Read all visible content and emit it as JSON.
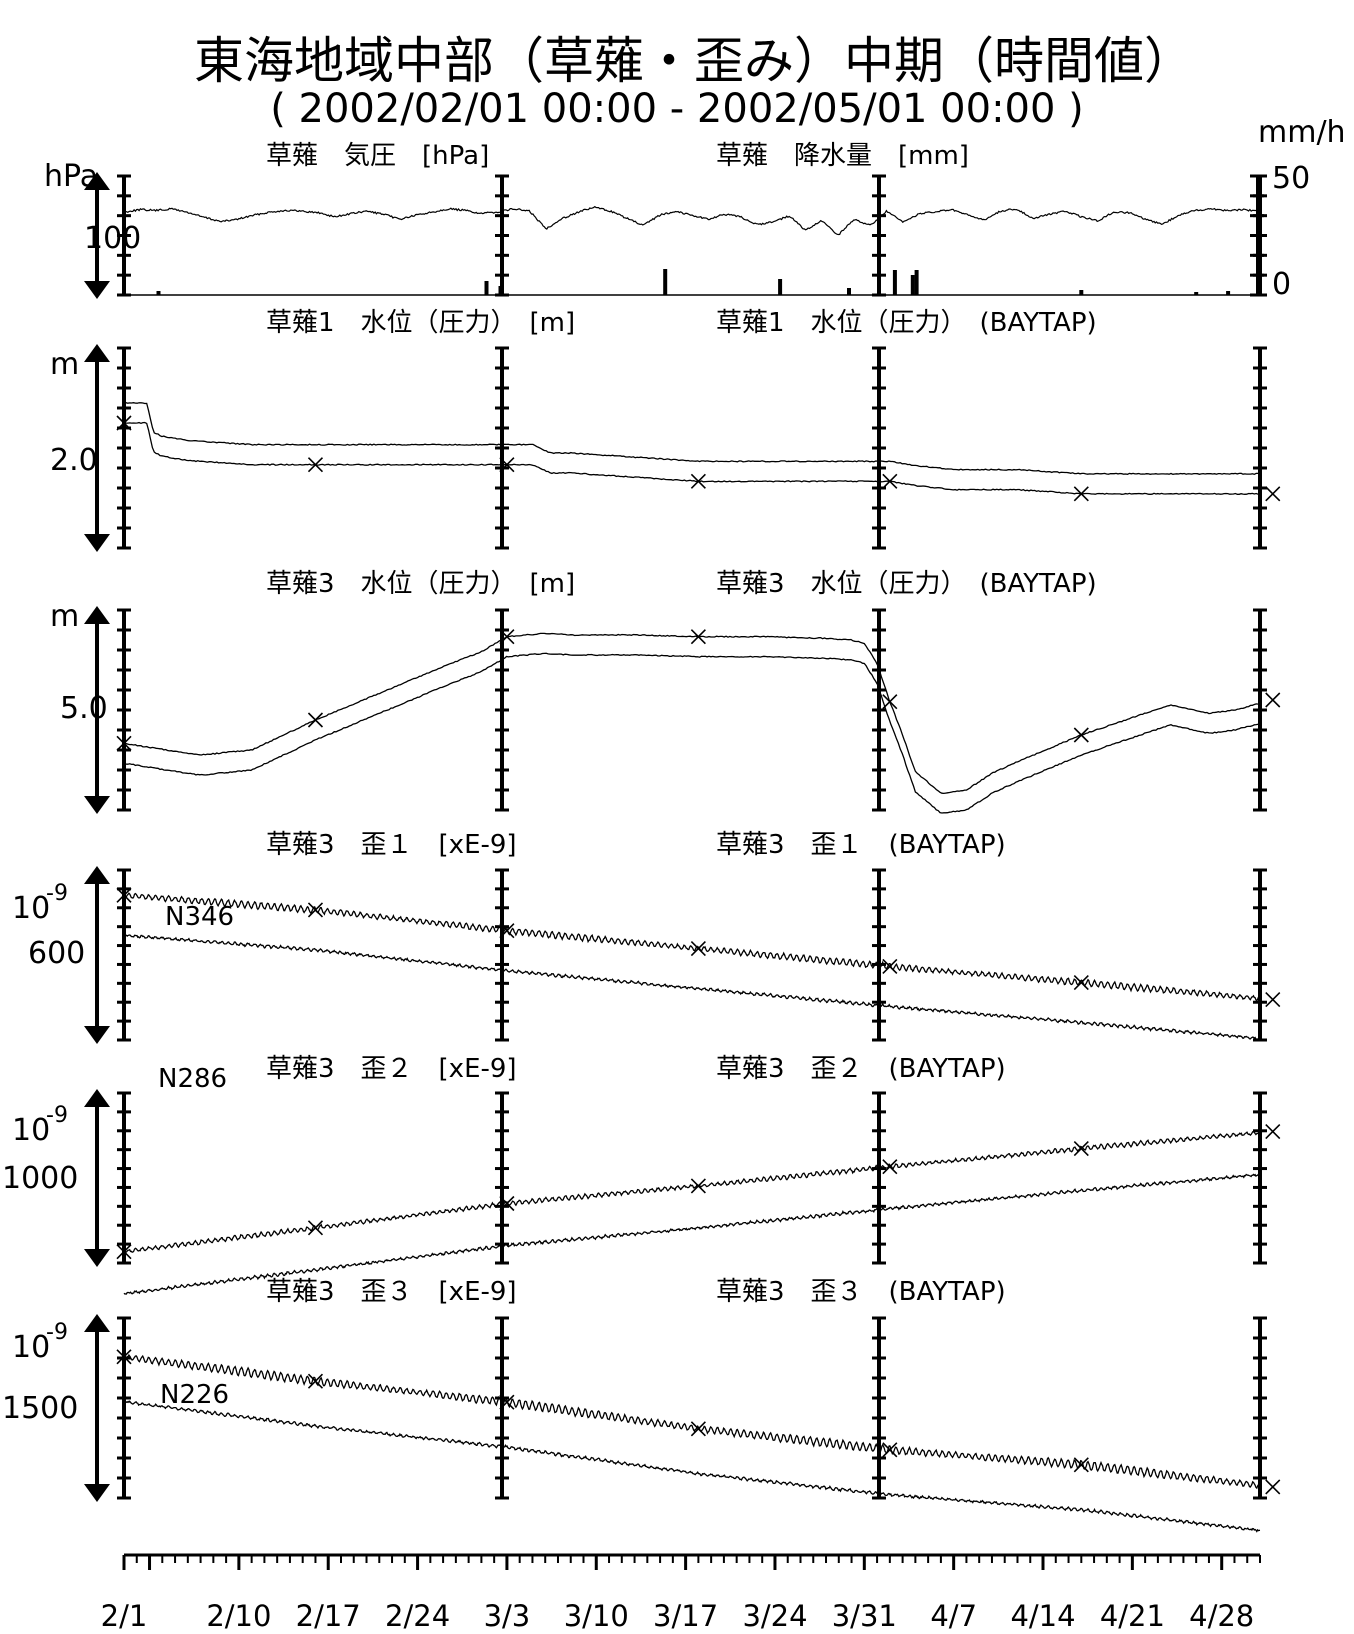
{
  "title": "東海地域中部（草薙・歪み）中期（時間値）",
  "subtitle": "( 2002/02/01 00:00 - 2002/05/01 00:00 )",
  "chart_data": [
    {
      "type": "line",
      "left_title": "草薙　気圧　[hPa]",
      "right_title": "草薙　降水量　[mm]",
      "ylabel": "hPa",
      "ylabel_right": "mm/h",
      "tick_label": "100",
      "right_ticks": [
        "50",
        "0"
      ],
      "series": [
        {
          "values": [
            10,
            7,
            8,
            6,
            11,
            17,
            22,
            19,
            14,
            10,
            8,
            9,
            11,
            16,
            12,
            9,
            13,
            19,
            14,
            10,
            6,
            8,
            12,
            10,
            6,
            9,
            31,
            18,
            10,
            4,
            9,
            18,
            27,
            14,
            9,
            14,
            19,
            13,
            16,
            26,
            22,
            15,
            33,
            21,
            39,
            19,
            27,
            9,
            23,
            12,
            10,
            7,
            14,
            20,
            9,
            6,
            18,
            13,
            9,
            16,
            21,
            10,
            11,
            20,
            25,
            14,
            8,
            6,
            8,
            7,
            9
          ]
        },
        {
          "spikes": [
            [
              2.7,
              4
            ],
            [
              28.4,
              14
            ],
            [
              29.5,
              9
            ],
            [
              42.4,
              26
            ],
            [
              51.4,
              16
            ],
            [
              56.8,
              7
            ],
            [
              60.4,
              25
            ],
            [
              61.8,
              20
            ],
            [
              62.1,
              25
            ],
            [
              75.0,
              5
            ],
            [
              84.0,
              3
            ],
            [
              86.5,
              4
            ]
          ]
        }
      ]
    },
    {
      "type": "line",
      "left_title": "草薙1　水位（圧力）　[m]",
      "right_title": "草薙1　水位（圧力）　(BAYTAP)",
      "ylabel": "m",
      "tick_label": "2.0",
      "series": [
        {
          "x": [
            0,
            1.8,
            2.3,
            3.0,
            5,
            10,
            20,
            29,
            32,
            33.4,
            35,
            40,
            45,
            50,
            57,
            60,
            62,
            65,
            70,
            75,
            80,
            85,
            90
          ],
          "values": [
            1.78,
            1.78,
            1.85,
            1.86,
            1.87,
            1.88,
            1.88,
            1.88,
            1.88,
            1.9,
            1.9,
            1.91,
            1.92,
            1.92,
            1.92,
            1.92,
            1.93,
            1.94,
            1.94,
            1.95,
            1.95,
            1.95,
            1.95
          ]
        },
        {
          "x": [
            0,
            1.8,
            2.3,
            3.0,
            5,
            10,
            20,
            29,
            32,
            33.4,
            35,
            40,
            45,
            50,
            57,
            60,
            62,
            65,
            70,
            75,
            80,
            85,
            90
          ],
          "values": [
            1.78,
            1.78,
            1.85,
            1.86,
            1.87,
            1.88,
            1.88,
            1.88,
            1.88,
            1.9,
            1.9,
            1.91,
            1.92,
            1.92,
            1.92,
            1.92,
            1.93,
            1.94,
            1.94,
            1.95,
            1.95,
            1.95,
            1.95
          ]
        }
      ]
    },
    {
      "type": "line",
      "left_title": "草薙3　水位（圧力）　[m]",
      "right_title": "草薙3　水位（圧力）　(BAYTAP)",
      "ylabel": "m",
      "tick_label": "5.0",
      "series": [
        {
          "x": [
            0,
            5,
            6,
            10,
            15,
            20,
            25,
            28,
            30,
            33,
            35,
            40,
            45,
            50,
            55,
            57,
            58,
            59,
            60,
            61,
            62,
            64,
            66,
            68,
            70,
            75,
            80,
            82,
            85,
            87,
            90
          ],
          "values": [
            5.0,
            5.06,
            5.07,
            5.04,
            4.86,
            4.7,
            4.54,
            4.45,
            4.36,
            4.34,
            4.35,
            4.35,
            4.36,
            4.36,
            4.37,
            4.38,
            4.4,
            4.52,
            4.75,
            4.95,
            5.17,
            5.3,
            5.28,
            5.18,
            5.11,
            4.95,
            4.82,
            4.77,
            4.82,
            4.8,
            4.74
          ]
        },
        {
          "x": [
            0,
            5,
            6,
            10,
            15,
            20,
            25,
            28,
            30,
            33,
            35,
            40,
            45,
            50,
            55,
            57,
            58,
            59,
            60,
            61,
            62,
            64,
            66,
            68,
            70,
            75,
            80,
            82,
            85,
            87,
            90
          ],
          "values": [
            5.0,
            5.06,
            5.07,
            5.04,
            4.86,
            4.7,
            4.54,
            4.45,
            4.36,
            4.34,
            4.35,
            4.35,
            4.36,
            4.36,
            4.37,
            4.38,
            4.4,
            4.52,
            4.75,
            4.95,
            5.17,
            5.3,
            5.28,
            5.18,
            5.11,
            4.95,
            4.82,
            4.77,
            4.82,
            4.8,
            4.74
          ]
        }
      ]
    },
    {
      "type": "line",
      "left_title": "草薙3　歪１　[xE-9]",
      "right_title": "草薙3　歪１　(BAYTAP)",
      "ylabel": "10",
      "ylabel_exp": "-9",
      "tick_label": "600",
      "series_label": "N346",
      "series": [
        {
          "x": [
            0,
            15,
            30,
            45,
            60,
            75,
            90
          ],
          "values": [
            585,
            617,
            662,
            701,
            740,
            775,
            812
          ]
        },
        {
          "x": [
            0,
            15,
            30,
            45,
            60,
            75,
            90
          ],
          "values": [
            585,
            617,
            662,
            701,
            740,
            775,
            812
          ]
        }
      ]
    },
    {
      "type": "line",
      "left_title": "草薙3　歪２　[xE-9]",
      "right_title": "草薙3　歪２　(BAYTAP)",
      "ylabel": "10",
      "ylabel_exp": "-9",
      "tick_label": "1000",
      "series_label": "N286",
      "series": [
        {
          "x": [
            0,
            15,
            30,
            45,
            60,
            75,
            90
          ],
          "values": [
            1110,
            1068,
            1025,
            994,
            960,
            928,
            898
          ]
        },
        {
          "x": [
            0,
            15,
            30,
            45,
            60,
            75,
            90
          ],
          "values": [
            1110,
            1068,
            1025,
            994,
            960,
            928,
            898
          ]
        }
      ]
    },
    {
      "type": "line",
      "left_title": "草薙3　歪３　[xE-9]",
      "right_title": "草薙3　歪３　(BAYTAP)",
      "ylabel": "10",
      "ylabel_exp": "-9",
      "tick_label": "1500",
      "series_label": "N226",
      "series": [
        {
          "x": [
            0,
            15,
            30,
            45,
            60,
            75,
            90
          ],
          "values": [
            1480,
            1524,
            1562,
            1610,
            1648,
            1675,
            1715
          ]
        },
        {
          "x": [
            0,
            15,
            30,
            45,
            60,
            75,
            90
          ],
          "values": [
            1480,
            1524,
            1562,
            1610,
            1648,
            1675,
            1715
          ]
        }
      ]
    }
  ],
  "x_axis": {
    "labels": [
      "2/1",
      "2/10",
      "2/17",
      "2/24",
      "3/3",
      "3/10",
      "3/17",
      "3/24",
      "3/31",
      "4/7",
      "4/14",
      "4/21",
      "4/28"
    ],
    "label_days": [
      0,
      9,
      16,
      23,
      30,
      37,
      44,
      51,
      58,
      65,
      72,
      79,
      86
    ],
    "range_days": [
      0,
      90
    ],
    "span_days": 89
  }
}
